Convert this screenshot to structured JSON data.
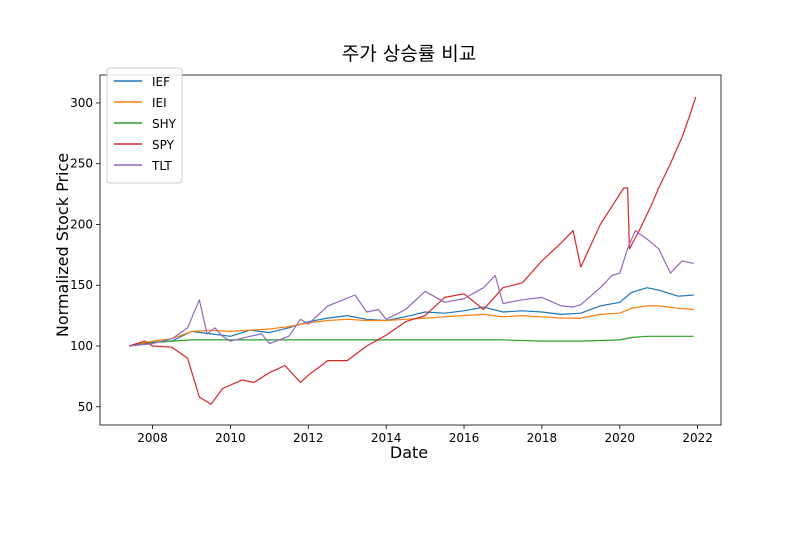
{
  "chart_data": {
    "type": "line",
    "title": "주가 상승률 비교",
    "xlabel": "Date",
    "ylabel": "Normalized Stock Price",
    "xlim": [
      2006.65,
      2022.6
    ],
    "ylim": [
      35,
      323
    ],
    "x_ticks": [
      2008,
      2010,
      2012,
      2014,
      2016,
      2018,
      2020,
      2022
    ],
    "y_ticks": [
      50,
      100,
      150,
      200,
      250,
      300
    ],
    "legend_position": "top-left",
    "grid": false,
    "series": [
      {
        "name": "IEF",
        "color": "#1f77b4",
        "points": [
          [
            2007.4,
            100
          ],
          [
            2008.0,
            103
          ],
          [
            2008.5,
            104
          ],
          [
            2009.0,
            112
          ],
          [
            2009.5,
            110
          ],
          [
            2010.0,
            108
          ],
          [
            2010.5,
            113
          ],
          [
            2011.0,
            111
          ],
          [
            2011.5,
            115
          ],
          [
            2012.0,
            120
          ],
          [
            2012.5,
            123
          ],
          [
            2013.0,
            125
          ],
          [
            2013.5,
            122
          ],
          [
            2014.0,
            121
          ],
          [
            2014.5,
            124
          ],
          [
            2015.0,
            128
          ],
          [
            2015.5,
            127
          ],
          [
            2016.0,
            129
          ],
          [
            2016.5,
            132
          ],
          [
            2017.0,
            128
          ],
          [
            2017.5,
            129
          ],
          [
            2018.0,
            128
          ],
          [
            2018.5,
            126
          ],
          [
            2019.0,
            127
          ],
          [
            2019.5,
            133
          ],
          [
            2020.0,
            136
          ],
          [
            2020.3,
            144
          ],
          [
            2020.7,
            148
          ],
          [
            2021.0,
            146
          ],
          [
            2021.5,
            141
          ],
          [
            2021.9,
            142
          ]
        ]
      },
      {
        "name": "IEI",
        "color": "#ff7f0e",
        "points": [
          [
            2007.4,
            100
          ],
          [
            2008.0,
            104
          ],
          [
            2008.5,
            106
          ],
          [
            2009.0,
            112
          ],
          [
            2009.5,
            113
          ],
          [
            2010.0,
            112
          ],
          [
            2010.5,
            113
          ],
          [
            2011.0,
            114
          ],
          [
            2011.5,
            116
          ],
          [
            2012.0,
            119
          ],
          [
            2012.5,
            121
          ],
          [
            2013.0,
            122
          ],
          [
            2013.5,
            121
          ],
          [
            2014.0,
            121
          ],
          [
            2014.5,
            122
          ],
          [
            2015.0,
            123
          ],
          [
            2015.5,
            124
          ],
          [
            2016.0,
            125
          ],
          [
            2016.5,
            126
          ],
          [
            2017.0,
            124
          ],
          [
            2017.5,
            125
          ],
          [
            2018.0,
            124
          ],
          [
            2018.5,
            123
          ],
          [
            2019.0,
            123
          ],
          [
            2019.5,
            126
          ],
          [
            2020.0,
            127
          ],
          [
            2020.3,
            131
          ],
          [
            2020.7,
            133
          ],
          [
            2021.0,
            133
          ],
          [
            2021.5,
            131
          ],
          [
            2021.9,
            130
          ]
        ]
      },
      {
        "name": "SHY",
        "color": "#2ca02c",
        "points": [
          [
            2007.4,
            100
          ],
          [
            2008.0,
            103
          ],
          [
            2008.5,
            104
          ],
          [
            2009.0,
            105
          ],
          [
            2010.0,
            105
          ],
          [
            2011.0,
            105
          ],
          [
            2012.0,
            105
          ],
          [
            2013.0,
            105
          ],
          [
            2014.0,
            105
          ],
          [
            2015.0,
            105
          ],
          [
            2016.0,
            105
          ],
          [
            2017.0,
            105
          ],
          [
            2018.0,
            104
          ],
          [
            2019.0,
            104
          ],
          [
            2020.0,
            105
          ],
          [
            2020.3,
            107
          ],
          [
            2020.7,
            108
          ],
          [
            2021.0,
            108
          ],
          [
            2021.9,
            108
          ]
        ]
      },
      {
        "name": "SPY",
        "color": "#d62728",
        "points": [
          [
            2007.4,
            100
          ],
          [
            2007.8,
            104
          ],
          [
            2008.0,
            100
          ],
          [
            2008.5,
            99
          ],
          [
            2008.9,
            90
          ],
          [
            2009.2,
            58
          ],
          [
            2009.5,
            52
          ],
          [
            2009.8,
            65
          ],
          [
            2010.3,
            72
          ],
          [
            2010.6,
            70
          ],
          [
            2011.0,
            78
          ],
          [
            2011.4,
            84
          ],
          [
            2011.8,
            70
          ],
          [
            2012.0,
            76
          ],
          [
            2012.5,
            88
          ],
          [
            2013.0,
            88
          ],
          [
            2013.5,
            100
          ],
          [
            2014.0,
            109
          ],
          [
            2014.5,
            120
          ],
          [
            2015.0,
            125
          ],
          [
            2015.5,
            140
          ],
          [
            2016.0,
            143
          ],
          [
            2016.5,
            130
          ],
          [
            2017.0,
            148
          ],
          [
            2017.5,
            152
          ],
          [
            2018.0,
            170
          ],
          [
            2018.5,
            185
          ],
          [
            2018.8,
            195
          ],
          [
            2019.0,
            165
          ],
          [
            2019.5,
            200
          ],
          [
            2019.8,
            215
          ],
          [
            2020.1,
            230
          ],
          [
            2020.2,
            230
          ],
          [
            2020.25,
            180
          ],
          [
            2020.5,
            195
          ],
          [
            2020.8,
            215
          ],
          [
            2021.0,
            230
          ],
          [
            2021.3,
            250
          ],
          [
            2021.6,
            272
          ],
          [
            2021.8,
            290
          ],
          [
            2021.95,
            305
          ]
        ]
      },
      {
        "name": "TLT",
        "color": "#9467bd",
        "points": [
          [
            2007.4,
            100
          ],
          [
            2008.0,
            102
          ],
          [
            2008.5,
            106
          ],
          [
            2008.9,
            115
          ],
          [
            2009.2,
            138
          ],
          [
            2009.4,
            110
          ],
          [
            2009.6,
            115
          ],
          [
            2009.8,
            108
          ],
          [
            2010.0,
            104
          ],
          [
            2010.5,
            108
          ],
          [
            2010.8,
            110
          ],
          [
            2011.0,
            102
          ],
          [
            2011.5,
            108
          ],
          [
            2011.8,
            122
          ],
          [
            2012.0,
            118
          ],
          [
            2012.5,
            133
          ],
          [
            2012.9,
            138
          ],
          [
            2013.2,
            142
          ],
          [
            2013.5,
            128
          ],
          [
            2013.8,
            130
          ],
          [
            2014.0,
            122
          ],
          [
            2014.5,
            130
          ],
          [
            2015.0,
            145
          ],
          [
            2015.5,
            136
          ],
          [
            2016.0,
            139
          ],
          [
            2016.5,
            148
          ],
          [
            2016.8,
            158
          ],
          [
            2017.0,
            135
          ],
          [
            2017.5,
            138
          ],
          [
            2018.0,
            140
          ],
          [
            2018.5,
            133
          ],
          [
            2018.8,
            132
          ],
          [
            2019.0,
            134
          ],
          [
            2019.5,
            148
          ],
          [
            2019.8,
            158
          ],
          [
            2020.0,
            160
          ],
          [
            2020.2,
            180
          ],
          [
            2020.4,
            195
          ],
          [
            2020.7,
            188
          ],
          [
            2021.0,
            180
          ],
          [
            2021.3,
            160
          ],
          [
            2021.6,
            170
          ],
          [
            2021.9,
            168
          ]
        ]
      }
    ]
  }
}
